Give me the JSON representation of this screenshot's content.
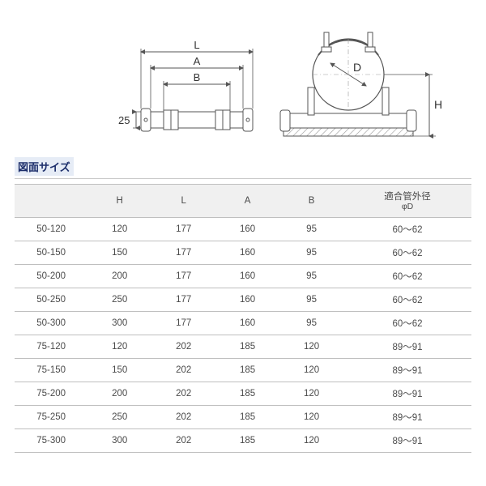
{
  "diagrams": {
    "left": {
      "label_L": "L",
      "label_A": "A",
      "label_B": "B",
      "label_25": "25",
      "stroke": "#555555",
      "bg": "#ffffff"
    },
    "right": {
      "label_D": "D",
      "label_H": "H",
      "stroke": "#555555",
      "hatch": "#9a9a9a",
      "bg": "#ffffff"
    }
  },
  "section_title": "図面サイズ",
  "table": {
    "header_bg": "#f0f0f0",
    "border_color": "#bfbfbf",
    "text_color": "#4a4a4a",
    "font_size": 11.5,
    "columns": [
      {
        "label": "",
        "width": "16%"
      },
      {
        "label": "H",
        "width": "14%"
      },
      {
        "label": "L",
        "width": "14%"
      },
      {
        "label": "A",
        "width": "14%"
      },
      {
        "label": "B",
        "width": "14%"
      },
      {
        "label": "適合管外径",
        "sub": "φD",
        "width": "28%"
      }
    ],
    "rows": [
      [
        "50-120",
        "120",
        "177",
        "160",
        "95",
        "60～62"
      ],
      [
        "50-150",
        "150",
        "177",
        "160",
        "95",
        "60～62"
      ],
      [
        "50-200",
        "200",
        "177",
        "160",
        "95",
        "60～62"
      ],
      [
        "50-250",
        "250",
        "177",
        "160",
        "95",
        "60～62"
      ],
      [
        "50-300",
        "300",
        "177",
        "160",
        "95",
        "60～62"
      ],
      [
        "75-120",
        "120",
        "202",
        "185",
        "120",
        "89～91"
      ],
      [
        "75-150",
        "150",
        "202",
        "185",
        "120",
        "89～91"
      ],
      [
        "75-200",
        "200",
        "202",
        "185",
        "120",
        "89～91"
      ],
      [
        "75-250",
        "250",
        "202",
        "185",
        "120",
        "89～91"
      ],
      [
        "75-300",
        "300",
        "202",
        "185",
        "120",
        "89～91"
      ]
    ]
  },
  "colors": {
    "title_bg": "#e6ecf6",
    "title_text": "#1b2d6a",
    "divider": "#c9c9c9",
    "page_bg": "#ffffff"
  }
}
